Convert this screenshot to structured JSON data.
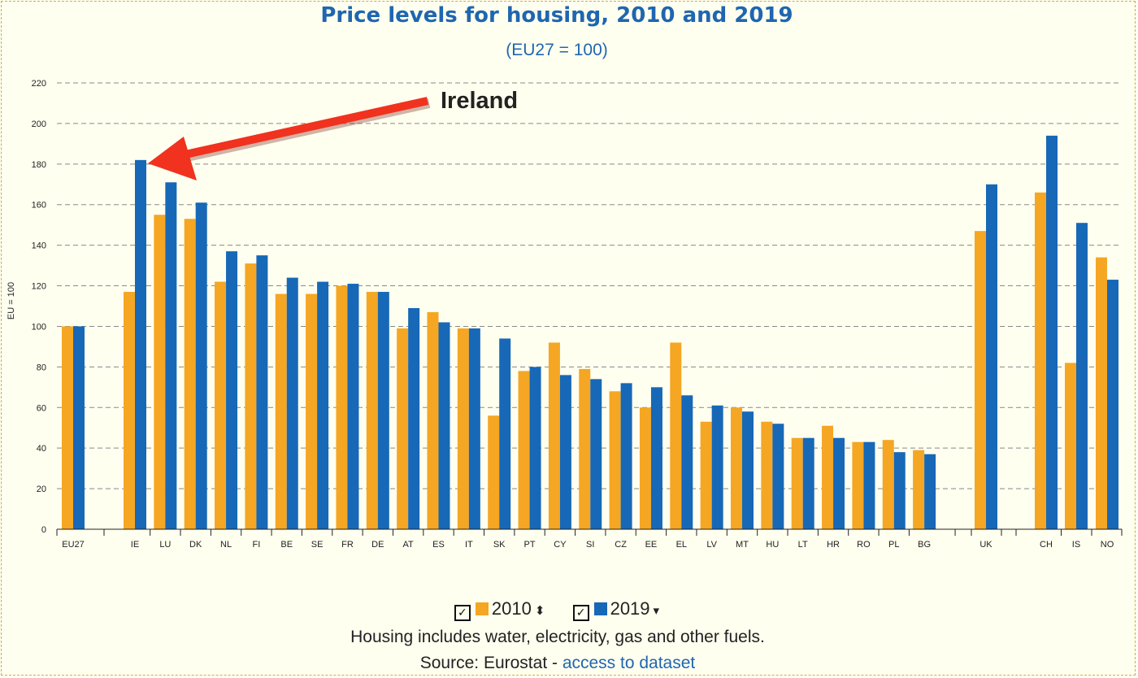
{
  "title": "Price levels for housing, 2010 and 2019",
  "subtitle": "(EU27 = 100)",
  "annotation": {
    "label": "Ireland"
  },
  "legend": {
    "items": [
      {
        "label": "2010",
        "color": "#f5a623",
        "checked": true,
        "sort_icon": "sort-both-icon"
      },
      {
        "label": "2019",
        "color": "#1768b7",
        "checked": true,
        "sort_icon": "sort-down-icon"
      }
    ]
  },
  "footer": {
    "note": "Housing includes water, electricity, gas and other fuels.",
    "source_prefix": "Source: Eurostat -",
    "source_link": "access to dataset"
  },
  "chart_data": {
    "type": "bar",
    "title": "Price levels for housing, 2010 and 2019",
    "subtitle": "(EU27 = 100)",
    "ylabel": "EU = 100",
    "xlabel": "",
    "ylim": [
      0,
      220
    ],
    "yticks": [
      0,
      20,
      40,
      60,
      80,
      100,
      120,
      140,
      160,
      180,
      200,
      220
    ],
    "grid": true,
    "legend_position": "bottom",
    "categories": [
      "EU27",
      "IE",
      "LU",
      "DK",
      "NL",
      "FI",
      "BE",
      "SE",
      "FR",
      "DE",
      "AT",
      "ES",
      "IT",
      "SK",
      "PT",
      "CY",
      "SI",
      "CZ",
      "EE",
      "EL",
      "LV",
      "MT",
      "HU",
      "LT",
      "HR",
      "RO",
      "PL",
      "BG",
      "UK",
      "CH",
      "IS",
      "NO"
    ],
    "series": [
      {
        "name": "2010",
        "color": "#f5a623",
        "values": [
          100,
          117,
          155,
          153,
          122,
          131,
          116,
          116,
          120,
          117,
          99,
          107,
          99,
          56,
          78,
          92,
          79,
          68,
          60,
          92,
          53,
          60,
          53,
          45,
          51,
          43,
          44,
          39,
          147,
          166,
          82,
          134
        ]
      },
      {
        "name": "2019",
        "color": "#1768b7",
        "values": [
          100,
          182,
          171,
          161,
          137,
          135,
          124,
          122,
          121,
          117,
          109,
          102,
          99,
          94,
          80,
          76,
          74,
          72,
          70,
          66,
          61,
          58,
          52,
          45,
          45,
          43,
          38,
          37,
          170,
          194,
          151,
          123
        ]
      }
    ]
  }
}
